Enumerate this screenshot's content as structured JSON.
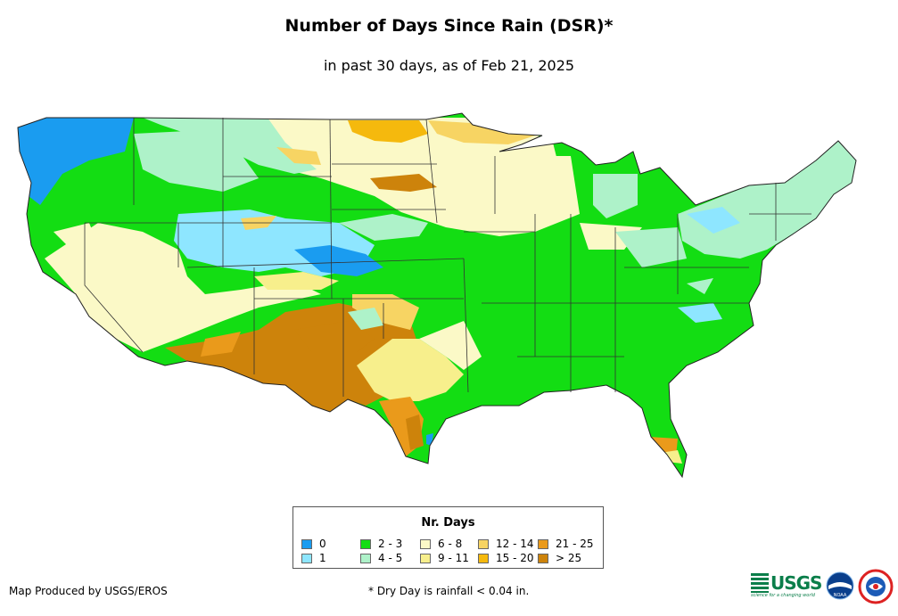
{
  "title": "Number of Days Since Rain (DSR)*",
  "subtitle": "in past 30 days, as of Feb 21, 2025",
  "legend": {
    "title": "Nr. Days",
    "items": [
      {
        "label": "0",
        "color": "#1a9cf0"
      },
      {
        "label": "1",
        "color": "#8ee6ff"
      },
      {
        "label": "2 - 3",
        "color": "#13dd13"
      },
      {
        "label": "4 - 5",
        "color": "#aef2c9"
      },
      {
        "label": "6 - 8",
        "color": "#fbf9c7"
      },
      {
        "label": "9 - 11",
        "color": "#f7ef8c"
      },
      {
        "label": "12 - 14",
        "color": "#f7d463"
      },
      {
        "label": "15 - 20",
        "color": "#f5b90d"
      },
      {
        "label": "21 - 25",
        "color": "#ea9a1b"
      },
      {
        "label": "> 25",
        "color": "#cd830b"
      }
    ]
  },
  "footer": {
    "credit": "Map Produced by USGS/EROS",
    "note": "* Dry Day is rainfall < 0.04 in."
  },
  "logos": {
    "usgs_text": "USGS",
    "usgs_tagline": "science for a changing world",
    "noaa_text": "NOAA"
  }
}
